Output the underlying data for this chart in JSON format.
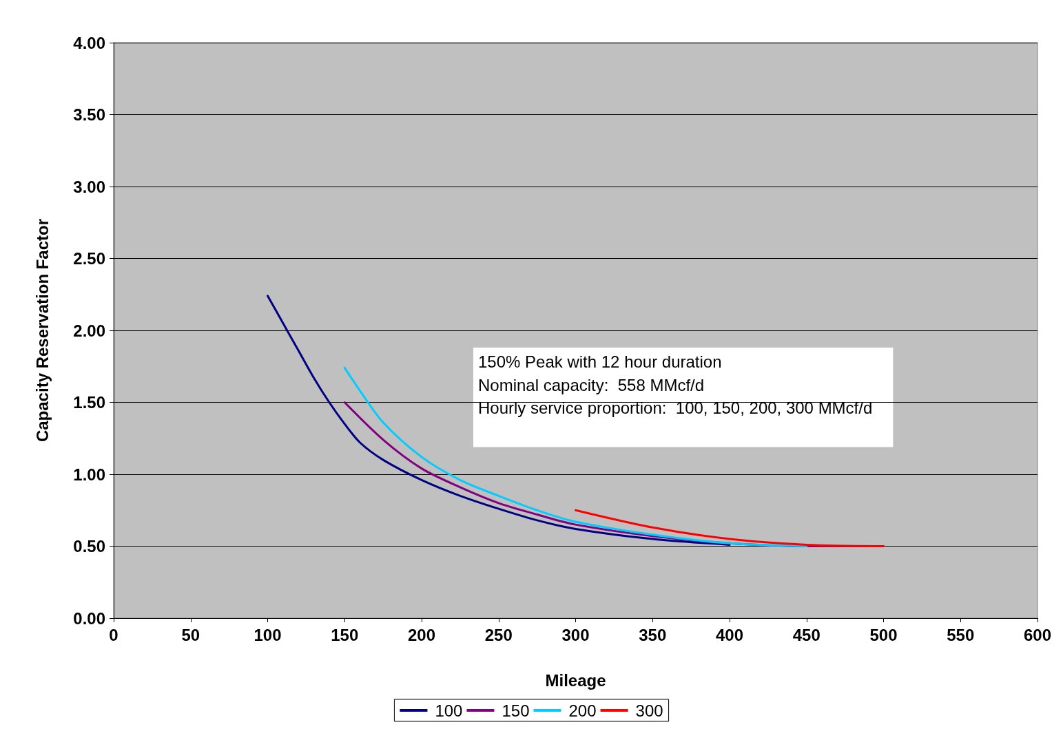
{
  "chart_data": {
    "type": "line",
    "xlabel": "Mileage",
    "ylabel": "Capacity Reservation Factor",
    "xlim": [
      0,
      600
    ],
    "xticks": [
      0,
      50,
      100,
      150,
      200,
      250,
      300,
      350,
      400,
      450,
      500,
      550,
      600
    ],
    "ylim": [
      0,
      4
    ],
    "yticks": [
      {
        "value": 0,
        "label": "0.00"
      },
      {
        "value": 0.5,
        "label": "0.50"
      },
      {
        "value": 1,
        "label": "1.00"
      },
      {
        "value": 1.5,
        "label": "1.50"
      },
      {
        "value": 2,
        "label": "2.00"
      },
      {
        "value": 2.5,
        "label": "2.50"
      },
      {
        "value": 3,
        "label": "3.00"
      },
      {
        "value": 3.5,
        "label": "3.50"
      },
      {
        "value": 4,
        "label": "4.00"
      }
    ],
    "grid": "y",
    "legend": "bottom",
    "marker": "none",
    "line_style": "solid",
    "annotations": [
      "150% Peak with 12 hour duration",
      "Nominal capacity:  558 MMcf/d",
      "Hourly service proportion:  100, 150, 200, 300 MMcf/d"
    ],
    "series": [
      {
        "name": "100",
        "color": "#000080",
        "x": [
          100,
          110,
          120,
          130,
          140,
          150,
          160,
          175,
          200,
          225,
          250,
          275,
          300,
          350,
          400
        ],
        "values": [
          2.24,
          2.05,
          1.86,
          1.67,
          1.5,
          1.35,
          1.22,
          1.1,
          0.96,
          0.85,
          0.76,
          0.68,
          0.62,
          0.55,
          0.51
        ]
      },
      {
        "name": "150",
        "color": "#800080",
        "x": [
          150,
          175,
          200,
          225,
          250,
          275,
          300,
          350,
          400,
          450,
          500
        ],
        "values": [
          1.5,
          1.24,
          1.04,
          0.91,
          0.8,
          0.72,
          0.65,
          0.57,
          0.52,
          0.5,
          0.5
        ]
      },
      {
        "name": "200",
        "color": "#00ccff",
        "x": [
          150,
          160,
          175,
          200,
          225,
          250,
          275,
          300,
          350,
          400,
          450
        ],
        "values": [
          1.74,
          1.58,
          1.36,
          1.12,
          0.96,
          0.85,
          0.75,
          0.67,
          0.58,
          0.52,
          0.5
        ]
      },
      {
        "name": "300",
        "color": "#ff0000",
        "x": [
          300,
          350,
          400,
          450,
          500
        ],
        "values": [
          0.75,
          0.63,
          0.55,
          0.51,
          0.5
        ]
      }
    ]
  }
}
